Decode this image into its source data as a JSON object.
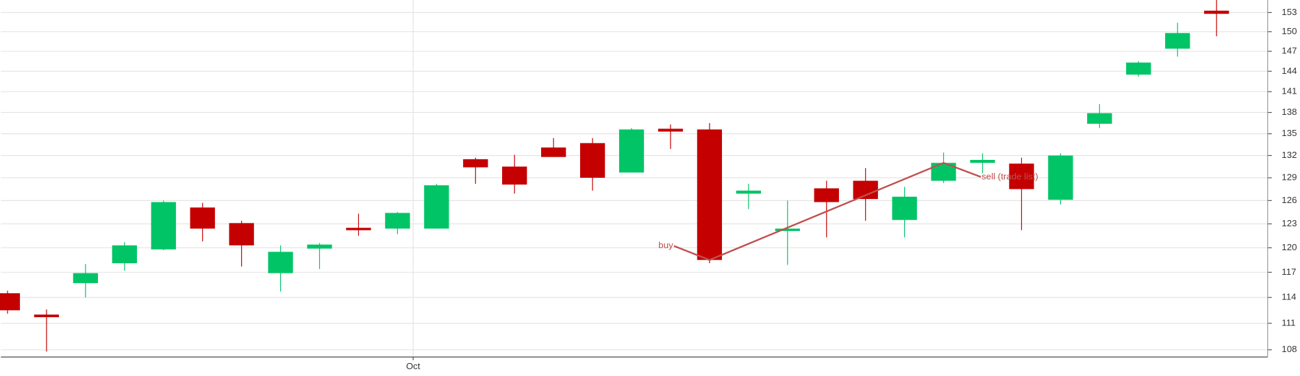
{
  "chart_data": {
    "type": "candlestick",
    "x": [
      0,
      1,
      2,
      3,
      4,
      5,
      6,
      7,
      8,
      9,
      10,
      11,
      12,
      13,
      14,
      15,
      16,
      17,
      18,
      19,
      20,
      21,
      22,
      23,
      24,
      25,
      26,
      27,
      28,
      29,
      30,
      31
    ],
    "open": [
      114.5,
      112.0,
      115.7,
      118.1,
      119.8,
      125.1,
      123.1,
      116.9,
      119.9,
      122.5,
      122.4,
      122.4,
      131.5,
      130.5,
      133.1,
      133.7,
      129.7,
      135.7,
      135.6,
      126.9,
      122.1,
      127.6,
      128.6,
      123.5,
      128.6,
      131.0,
      130.9,
      126.1,
      136.4,
      143.5,
      147.4,
      153.3
    ],
    "high": [
      114.8,
      112.6,
      118.0,
      120.7,
      126.0,
      125.7,
      123.4,
      120.3,
      120.6,
      124.3,
      124.5,
      128.2,
      131.7,
      132.1,
      134.4,
      134.4,
      135.8,
      136.3,
      136.5,
      128.2,
      126.0,
      128.6,
      130.3,
      127.8,
      132.4,
      132.3,
      131.7,
      132.3,
      139.2,
      145.5,
      151.4,
      155.0
    ],
    "low": [
      112.1,
      107.8,
      114.0,
      117.2,
      119.7,
      120.8,
      117.7,
      114.7,
      117.4,
      121.5,
      121.7,
      122.4,
      128.2,
      126.9,
      131.8,
      127.3,
      129.7,
      132.9,
      118.1,
      124.9,
      117.9,
      121.3,
      123.4,
      121.3,
      128.3,
      129.6,
      122.2,
      125.5,
      135.8,
      143.2,
      146.2,
      149.3
    ],
    "close": [
      112.5,
      111.7,
      116.9,
      120.3,
      125.8,
      122.4,
      120.3,
      119.5,
      120.4,
      122.2,
      124.4,
      128.0,
      130.4,
      128.1,
      131.8,
      129.0,
      135.6,
      135.3,
      118.5,
      127.3,
      122.4,
      125.8,
      126.2,
      126.5,
      131.0,
      131.4,
      127.5,
      132.0,
      137.9,
      145.3,
      149.8,
      152.8
    ],
    "up_color": "#00c466",
    "down_color": "#c40000",
    "xlim": [
      -0.17,
      32.31
    ],
    "xticks": [
      {
        "value": 10.4,
        "label": "Oct"
      }
    ],
    "ylim": [
      107.2,
      155.0
    ],
    "log_scale": true,
    "yticks": [
      108,
      111,
      114,
      117,
      120,
      123,
      126,
      129,
      132,
      135,
      138,
      141,
      144,
      147,
      150,
      153
    ],
    "grid": true,
    "trades": [
      {
        "label": "buy",
        "x": 18,
        "value": 118.5
      },
      {
        "label": "sell (trade list)",
        "x": 24,
        "value": 131.0
      }
    ],
    "trade_color": "#c0504d"
  }
}
